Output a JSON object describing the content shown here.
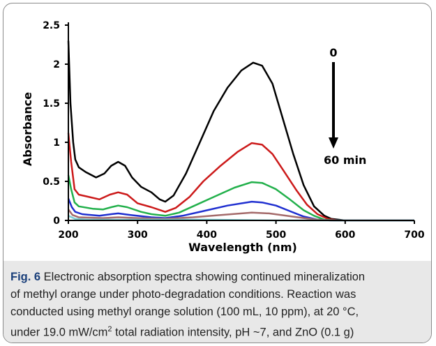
{
  "chart_data": {
    "type": "line",
    "title": "",
    "xlabel": "Wavelength (nm)",
    "ylabel": "Absorbance",
    "xlim": [
      200,
      700
    ],
    "ylim": [
      0,
      2.5
    ],
    "xticks": [
      "200",
      "300",
      "400",
      "500",
      "600",
      "700"
    ],
    "yticks": [
      "0",
      "0.5",
      "1",
      "1.5",
      "2",
      "2.5"
    ],
    "grid": false,
    "legend": "none",
    "annotations": {
      "start": "0",
      "end": "60 min"
    },
    "series": [
      {
        "color": "#000000",
        "points": [
          [
            200,
            2.3
          ],
          [
            203,
            1.5
          ],
          [
            207,
            1.0
          ],
          [
            210,
            0.78
          ],
          [
            215,
            0.68
          ],
          [
            225,
            0.62
          ],
          [
            240,
            0.55
          ],
          [
            252,
            0.6
          ],
          [
            262,
            0.7
          ],
          [
            272,
            0.75
          ],
          [
            282,
            0.7
          ],
          [
            292,
            0.55
          ],
          [
            305,
            0.43
          ],
          [
            320,
            0.36
          ],
          [
            332,
            0.27
          ],
          [
            340,
            0.24
          ],
          [
            352,
            0.32
          ],
          [
            370,
            0.6
          ],
          [
            390,
            1.0
          ],
          [
            410,
            1.4
          ],
          [
            430,
            1.7
          ],
          [
            450,
            1.92
          ],
          [
            467,
            2.02
          ],
          [
            480,
            1.98
          ],
          [
            495,
            1.75
          ],
          [
            510,
            1.3
          ],
          [
            525,
            0.85
          ],
          [
            540,
            0.45
          ],
          [
            555,
            0.18
          ],
          [
            570,
            0.06
          ],
          [
            580,
            0.02
          ],
          [
            600,
            0.0
          ],
          [
            700,
            0.0
          ]
        ]
      },
      {
        "color": "#cc1a1a",
        "points": [
          [
            200,
            1.12
          ],
          [
            204,
            0.75
          ],
          [
            209,
            0.4
          ],
          [
            215,
            0.33
          ],
          [
            230,
            0.3
          ],
          [
            245,
            0.27
          ],
          [
            260,
            0.33
          ],
          [
            272,
            0.36
          ],
          [
            285,
            0.33
          ],
          [
            300,
            0.22
          ],
          [
            320,
            0.17
          ],
          [
            340,
            0.11
          ],
          [
            355,
            0.16
          ],
          [
            375,
            0.3
          ],
          [
            395,
            0.5
          ],
          [
            420,
            0.7
          ],
          [
            445,
            0.88
          ],
          [
            465,
            0.99
          ],
          [
            480,
            0.97
          ],
          [
            495,
            0.85
          ],
          [
            510,
            0.65
          ],
          [
            530,
            0.38
          ],
          [
            545,
            0.2
          ],
          [
            560,
            0.08
          ],
          [
            575,
            0.02
          ],
          [
            590,
            0.0
          ],
          [
            700,
            0.0
          ]
        ]
      },
      {
        "color": "#22b04b",
        "points": [
          [
            200,
            0.58
          ],
          [
            204,
            0.4
          ],
          [
            209,
            0.23
          ],
          [
            215,
            0.18
          ],
          [
            235,
            0.15
          ],
          [
            250,
            0.14
          ],
          [
            262,
            0.17
          ],
          [
            272,
            0.19
          ],
          [
            285,
            0.17
          ],
          [
            305,
            0.11
          ],
          [
            320,
            0.08
          ],
          [
            340,
            0.06
          ],
          [
            360,
            0.1
          ],
          [
            380,
            0.18
          ],
          [
            410,
            0.3
          ],
          [
            440,
            0.42
          ],
          [
            465,
            0.49
          ],
          [
            480,
            0.48
          ],
          [
            500,
            0.4
          ],
          [
            520,
            0.27
          ],
          [
            540,
            0.13
          ],
          [
            555,
            0.06
          ],
          [
            570,
            0.01
          ],
          [
            585,
            0.0
          ],
          [
            700,
            0.0
          ]
        ]
      },
      {
        "color": "#1f2fd0",
        "points": [
          [
            200,
            0.28
          ],
          [
            205,
            0.17
          ],
          [
            210,
            0.11
          ],
          [
            220,
            0.08
          ],
          [
            245,
            0.06
          ],
          [
            262,
            0.08
          ],
          [
            272,
            0.09
          ],
          [
            290,
            0.07
          ],
          [
            320,
            0.04
          ],
          [
            340,
            0.03
          ],
          [
            365,
            0.06
          ],
          [
            395,
            0.12
          ],
          [
            430,
            0.19
          ],
          [
            465,
            0.24
          ],
          [
            480,
            0.23
          ],
          [
            500,
            0.19
          ],
          [
            520,
            0.12
          ],
          [
            540,
            0.05
          ],
          [
            560,
            0.01
          ],
          [
            580,
            0.0
          ],
          [
            700,
            0.0
          ]
        ]
      },
      {
        "color": "#a56b6b",
        "points": [
          [
            200,
            0.14
          ],
          [
            206,
            0.07
          ],
          [
            215,
            0.04
          ],
          [
            250,
            0.03
          ],
          [
            272,
            0.04
          ],
          [
            300,
            0.03
          ],
          [
            340,
            0.02
          ],
          [
            380,
            0.04
          ],
          [
            420,
            0.07
          ],
          [
            465,
            0.1
          ],
          [
            490,
            0.09
          ],
          [
            515,
            0.06
          ],
          [
            540,
            0.03
          ],
          [
            560,
            0.01
          ],
          [
            580,
            0.0
          ],
          [
            700,
            0.0
          ]
        ]
      },
      {
        "color": "#7fd0d6",
        "points": [
          [
            200,
            0.06
          ],
          [
            210,
            0.02
          ],
          [
            230,
            0.01
          ],
          [
            300,
            0.01
          ],
          [
            400,
            0.01
          ],
          [
            500,
            0.0
          ],
          [
            700,
            0.0
          ]
        ]
      }
    ]
  },
  "caption": {
    "label": "Fig. 6",
    "line1": " Electronic absorption spectra showing continued mineralization",
    "line2": "of methyl orange under photo-degradation conditions. Reaction was",
    "line3": "conducted using methyl orange solution (100 mL, 10 ppm), at 20 °C,",
    "line4_a": "under 19.0 mW/cm",
    "line4_sup": "2",
    "line4_b": " total radiation intensity, pH ~7, and ZnO (0.1 g)"
  }
}
